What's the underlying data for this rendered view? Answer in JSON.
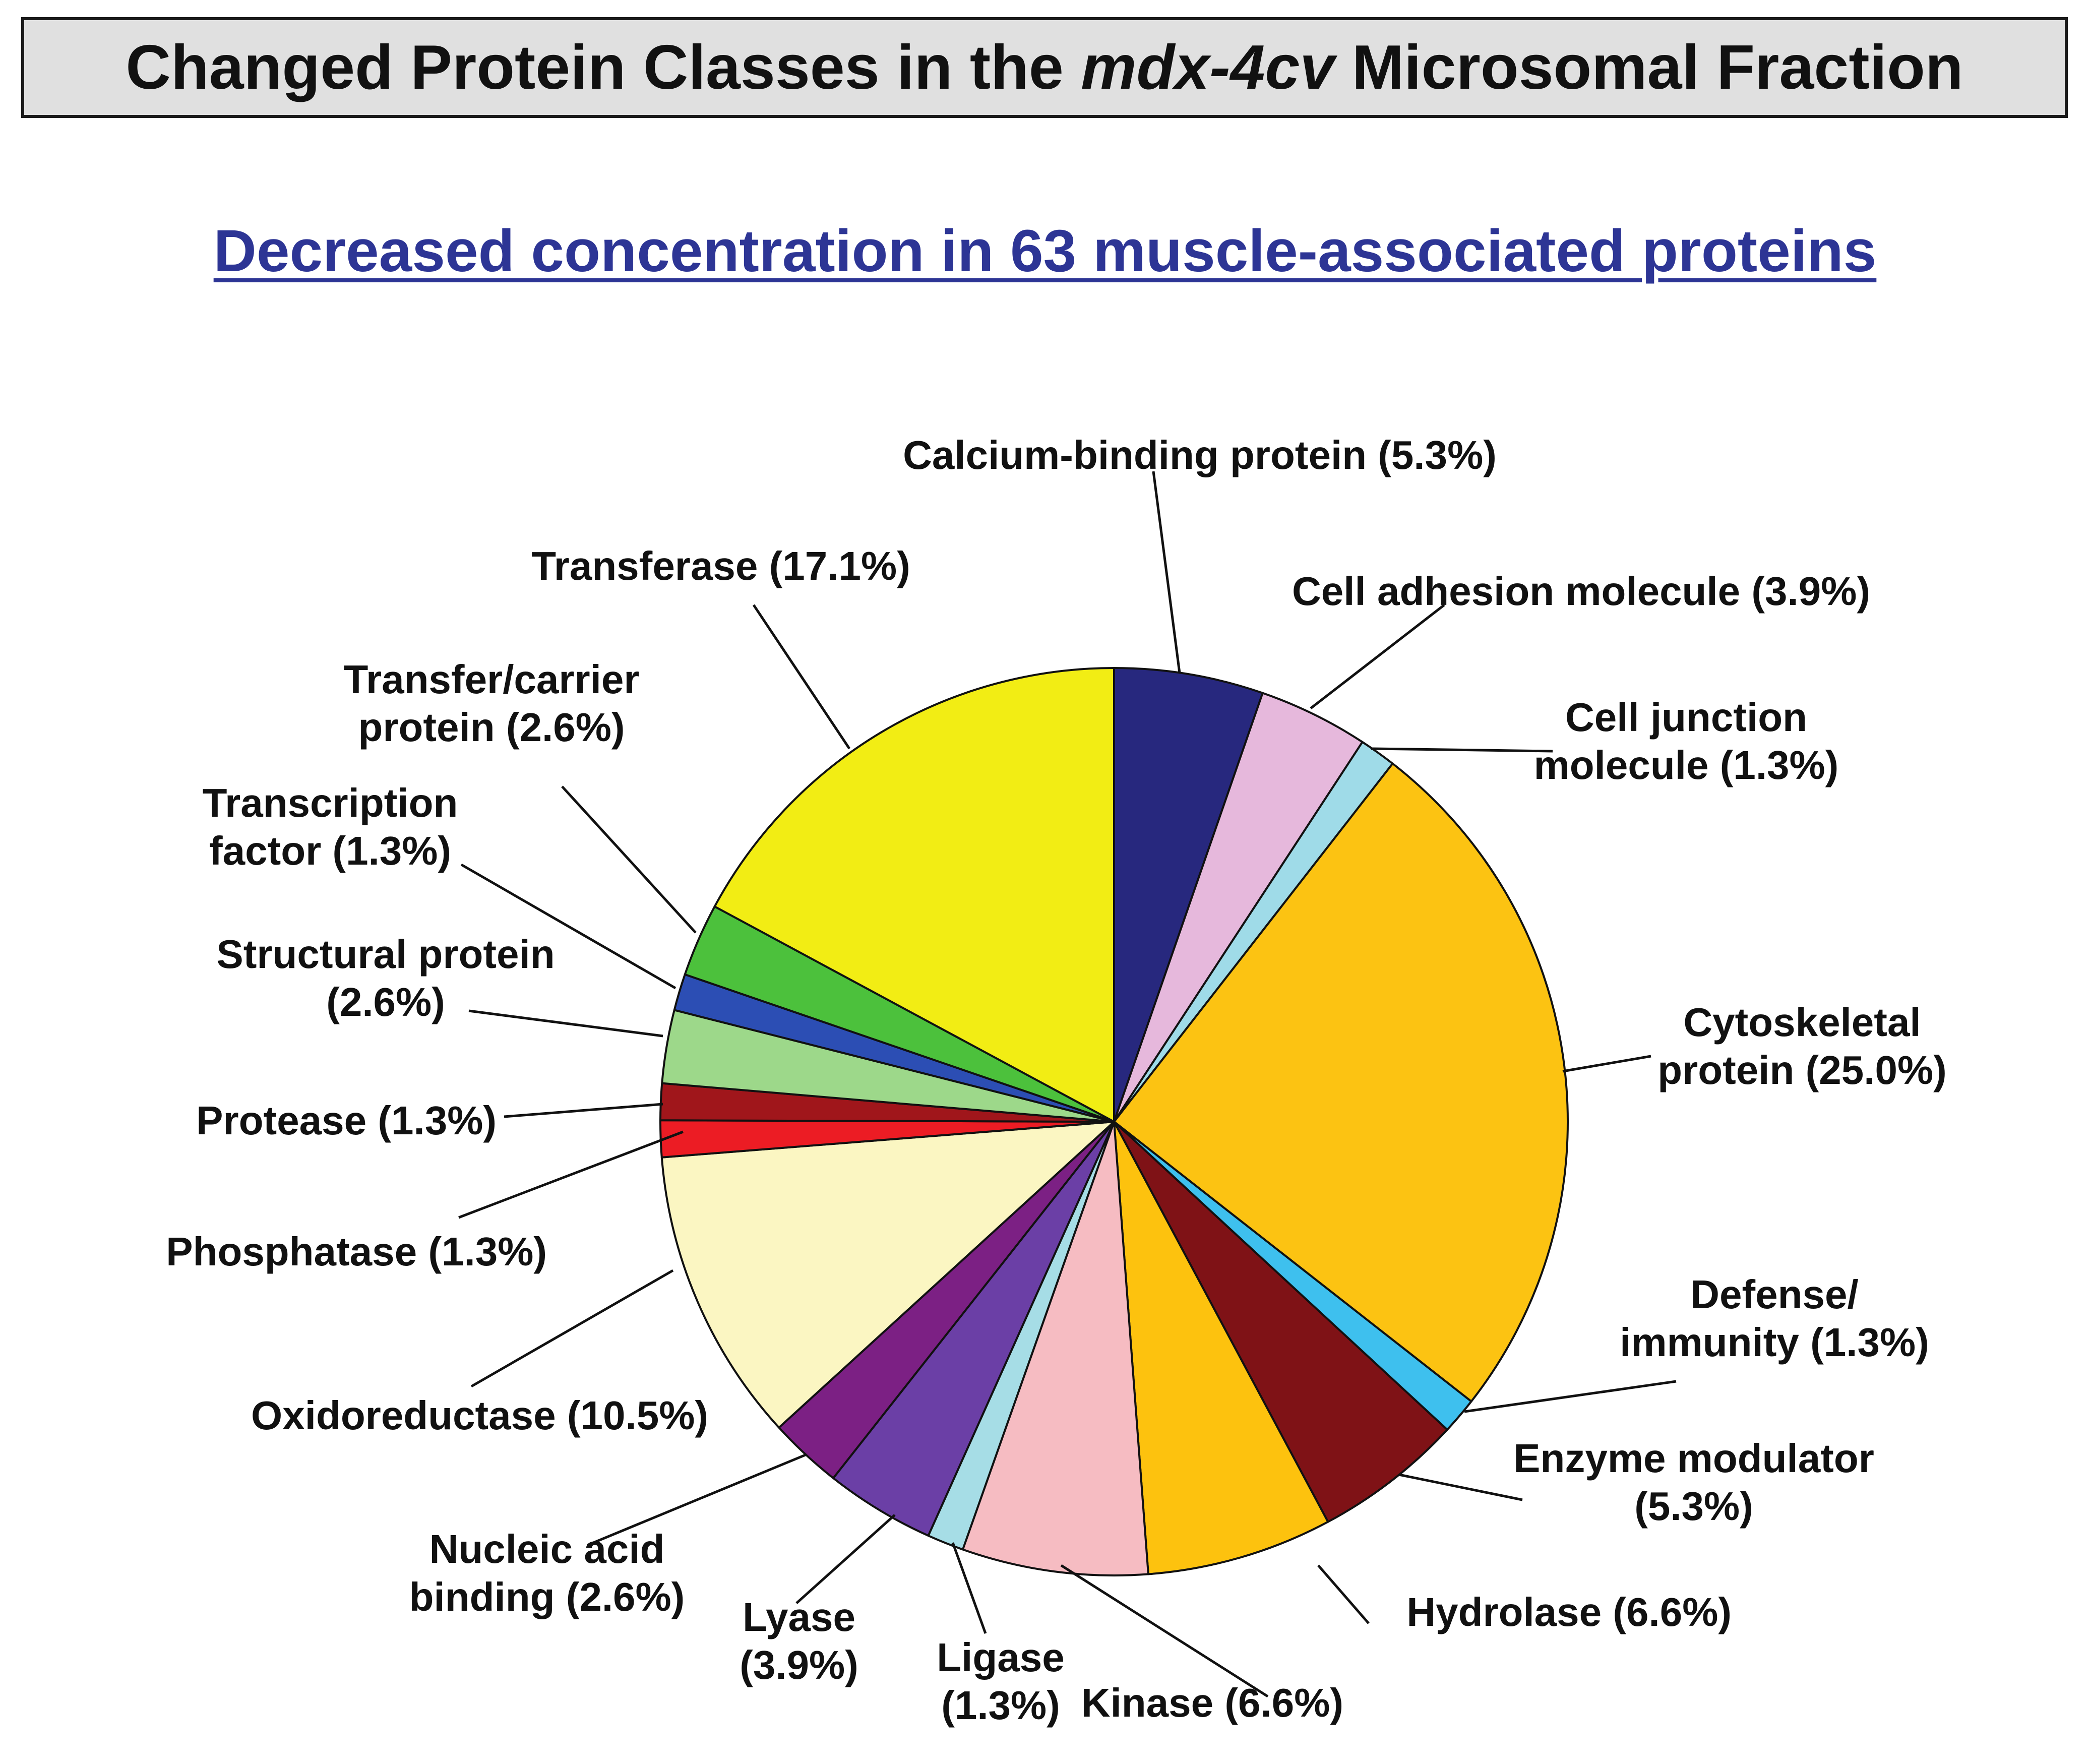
{
  "header": {
    "title_before": "Changed Protein Classes in the",
    "title_italic": "mdx-4cv",
    "title_after": "Microsomal Fraction"
  },
  "chart_data": {
    "type": "pie",
    "title": "Changed Protein Classes in the mdx-4cv Microsomal Fraction",
    "subtitle": "Decreased concentration in 63 muscle-associated proteins",
    "slices": [
      {
        "name": "Calcium-binding protein",
        "value": 5.3,
        "color": "#27287e",
        "label": [
          "Calcium-binding protein (5.3%)"
        ]
      },
      {
        "name": "Cell adhesion molecule",
        "value": 3.9,
        "color": "#e6b8dc",
        "label": [
          "Cell adhesion molecule (3.9%)"
        ]
      },
      {
        "name": "Cell junction molecule",
        "value": 1.3,
        "color": "#9fdbe8",
        "label": [
          "Cell junction",
          "molecule (1.3%)"
        ]
      },
      {
        "name": "Cytoskeletal protein",
        "value": 25.0,
        "color": "#fcc312",
        "label": [
          "Cytoskeletal",
          "protein (25.0%)"
        ]
      },
      {
        "name": "Defense/immunity",
        "value": 1.3,
        "color": "#3ec0ee",
        "label": [
          "Defense/",
          "immunity (1.3%)"
        ]
      },
      {
        "name": "Enzyme modulator",
        "value": 5.3,
        "color": "#7f1216",
        "label": [
          "Enzyme modulator",
          "(5.3%)"
        ]
      },
      {
        "name": "Hydrolase",
        "value": 6.6,
        "color": "#fdc20e",
        "label": [
          "Hydrolase (6.6%)"
        ]
      },
      {
        "name": "Kinase",
        "value": 6.6,
        "color": "#f6bcc2",
        "label": [
          "Kinase  (6.6%)"
        ]
      },
      {
        "name": "Ligase",
        "value": 1.3,
        "color": "#a6dde6",
        "label": [
          "Ligase",
          "(1.3%)"
        ]
      },
      {
        "name": "Lyase",
        "value": 3.9,
        "color": "#6b3fa6",
        "label": [
          "Lyase",
          "(3.9%)"
        ]
      },
      {
        "name": "Nucleic acid binding",
        "value": 2.6,
        "color": "#7c2084",
        "label": [
          "Nucleic acid",
          "binding (2.6%)"
        ]
      },
      {
        "name": "Oxidoreductase",
        "value": 10.5,
        "color": "#fbf6c2",
        "label": [
          "Oxidoreductase (10.5%)"
        ]
      },
      {
        "name": "Phosphatase",
        "value": 1.3,
        "color": "#ec1c24",
        "label": [
          "Phosphatase (1.3%)"
        ]
      },
      {
        "name": "Protease",
        "value": 1.3,
        "color": "#a0161b",
        "label": [
          "Protease (1.3%)"
        ]
      },
      {
        "name": "Structural protein",
        "value": 2.6,
        "color": "#9dd88a",
        "label": [
          "Structural protein",
          "(2.6%)"
        ]
      },
      {
        "name": "Transcription factor",
        "value": 1.3,
        "color": "#2c4eb4",
        "label": [
          "Transcription",
          "factor (1.3%)"
        ]
      },
      {
        "name": "Transfer/carrier protein",
        "value": 2.6,
        "color": "#4cc13c",
        "label": [
          "Transfer/carrier",
          "protein (2.6%)"
        ]
      },
      {
        "name": "Transferase",
        "value": 17.1,
        "color": "#f2ed14",
        "label": [
          "Transferase (17.1%)"
        ]
      }
    ]
  }
}
